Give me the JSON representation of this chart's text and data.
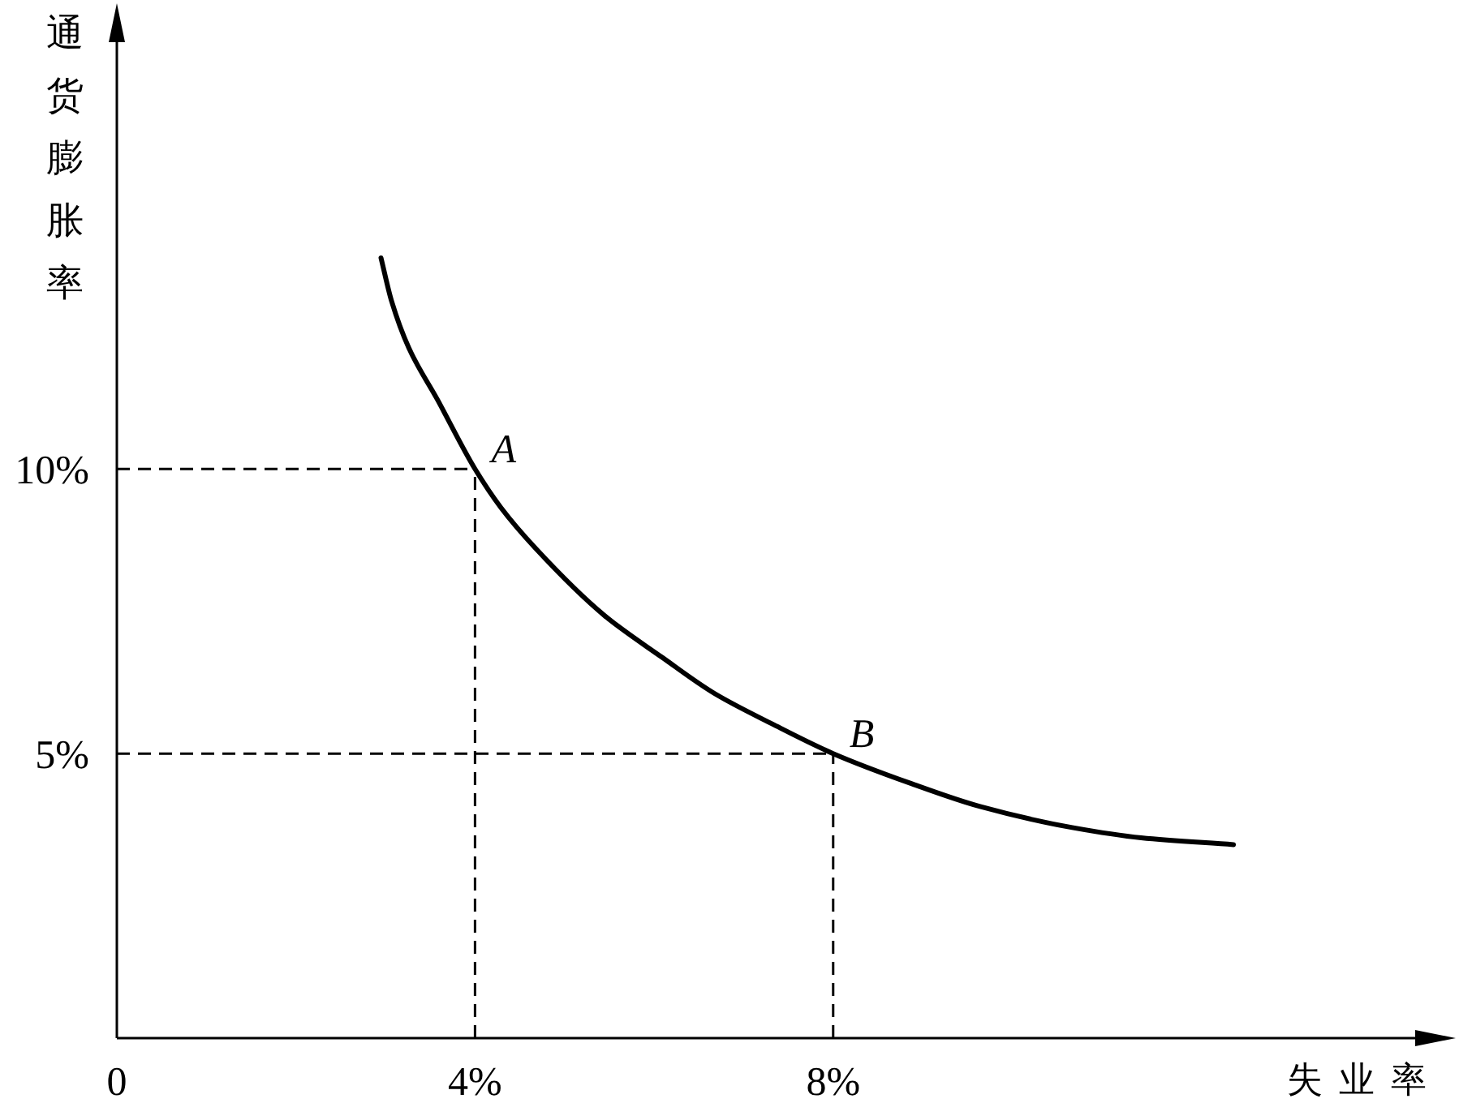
{
  "chart_data": {
    "type": "line",
    "xlabel": "失业率",
    "ylabel": "通货膨胀率",
    "series": [
      {
        "color": "#000000",
        "x": [
          2.95,
          3.07,
          3.26,
          3.58,
          4,
          4.29,
          4.68,
          5.45,
          6.09,
          6.67,
          7.32,
          8,
          8.86,
          9.64,
          10.67,
          11.44,
          12.47
        ],
        "values": [
          13.71,
          12.94,
          12.13,
          11.22,
          10,
          9.32,
          8.6,
          7.42,
          6.69,
          6.06,
          5.52,
          5,
          4.48,
          4.07,
          3.7,
          3.52,
          3.4
        ]
      }
    ],
    "xlim": [
      0,
      14.5
    ],
    "ylim": [
      0,
      17.5
    ],
    "xticks": [
      {
        "value": 0,
        "label": "0"
      },
      {
        "value": 4,
        "label": "4%"
      },
      {
        "value": 8,
        "label": "8%"
      }
    ],
    "yticks": [
      {
        "value": 5,
        "label": "5%"
      },
      {
        "value": 10,
        "label": "10%"
      }
    ],
    "ref_lines": [
      {
        "axis": "y",
        "value": 10,
        "color": "#000000",
        "line_style": "dashed"
      },
      {
        "axis": "x",
        "value": 4,
        "color": "#000000",
        "line_style": "dashed"
      },
      {
        "axis": "y",
        "value": 5,
        "color": "#000000",
        "line_style": "dashed"
      },
      {
        "axis": "x",
        "value": 8,
        "color": "#000000",
        "line_style": "dashed"
      }
    ],
    "annotations": [
      {
        "text": "A",
        "x": 4,
        "y": 10
      },
      {
        "text": "B",
        "x": 8,
        "y": 5
      }
    ],
    "grid": false,
    "marker": "none",
    "line_style": "solid"
  }
}
